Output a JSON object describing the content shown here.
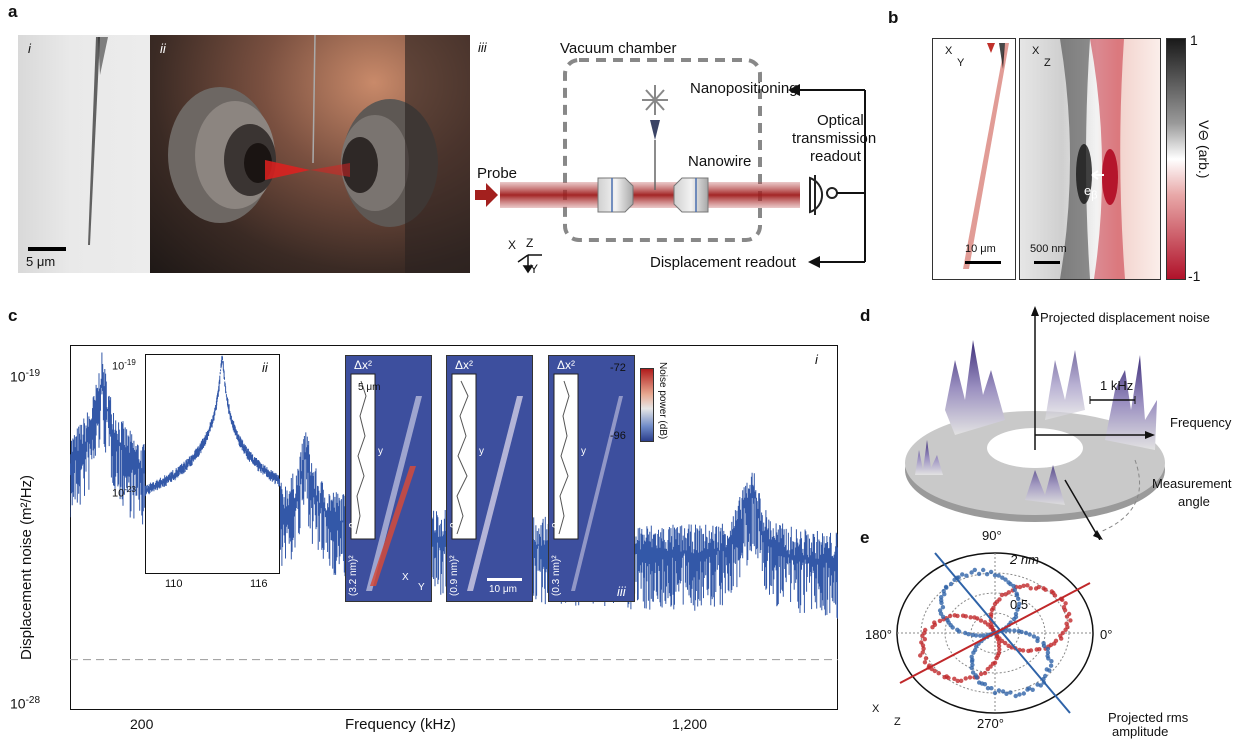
{
  "panels": {
    "a": "a",
    "b": "b",
    "c": "c",
    "d": "d",
    "e": "e"
  },
  "a": {
    "sub_i": "i",
    "sub_ii": "ii",
    "sub_iii": "iii",
    "scale_bar": "5 μm",
    "vacuum_chamber": "Vacuum chamber",
    "nanopositioning": "Nanopositioning",
    "optical_readout_1": "Optical",
    "optical_readout_2": "transmission",
    "optical_readout_3": "readout",
    "nanowire": "Nanowire",
    "probe": "Probe",
    "displacement_readout": "Displacement readout",
    "axis_x": "X",
    "axis_z": "Z",
    "axis_y": "Y"
  },
  "b": {
    "axis_x1": "X",
    "axis_y1": "Y",
    "axis_x2": "X",
    "axis_z2": "Z",
    "scale_left": "10 μm",
    "scale_right": "500 nm",
    "e_beta": "e",
    "e_beta_sub": "β",
    "colorbar_top": "1",
    "colorbar_bottom": "-1",
    "colorbar_label": "V⊖ (arb.)",
    "colors": {
      "pos": "#1a1a1a",
      "neg": "#b0122a",
      "mid": "#ffffff"
    }
  },
  "c": {
    "sub_i": "i",
    "sub_ii": "ii",
    "sub_iii": "iii",
    "xlabel": "Frequency (kHz)",
    "ylabel": "Displacement noise (m²/Hz)",
    "ytick_top": "10",
    "ytick_top_exp": "-19",
    "ytick_bottom": "10",
    "ytick_bottom_exp": "-28",
    "xtick_1": "200",
    "xtick_2": "1,200",
    "inset_ytick_top": "10",
    "inset_ytick_top_exp": "-19",
    "inset_ytick_bottom": "10",
    "inset_ytick_bottom_exp": "-23",
    "inset_xtick_1": "110",
    "inset_xtick_2": "116",
    "map_title": "Δx²",
    "map1_scale": "5 μm",
    "map1_y": "y",
    "map1_zero": "0",
    "map1_value": "(3.2 nm)²",
    "map2_y": "y",
    "map2_zero": "0",
    "map2_value": "(0.9 nm)²",
    "map2_scale": "10 μm",
    "map3_y": "y",
    "map3_zero": "0",
    "map3_value": "(0.3 nm)²",
    "map_axis_x": "X",
    "map_axis_y": "Y",
    "cbar_top": "-72",
    "cbar_bottom": "-96",
    "cbar_label": "Noise power (dB)",
    "line_color": "#3358a8"
  },
  "d": {
    "label_vertical": "Projected displacement noise",
    "label_khz": "1 kHz",
    "label_freq": "Frequency",
    "label_angle_1": "Measurement",
    "label_angle_2": "angle"
  },
  "e": {
    "deg_90": "90°",
    "deg_180": "180°",
    "deg_0": "0°",
    "deg_270": "270°",
    "r_2nm": "2 nm",
    "r_05": "0.5",
    "axis_x": "X",
    "axis_z": "Z",
    "proj_1": "Projected rms",
    "proj_2": "amplitude",
    "colors": {
      "red": "#c0282a",
      "blue": "#2f63a8"
    }
  },
  "chart_data": {
    "type": "line",
    "xlabel": "Frequency (kHz)",
    "ylabel": "Displacement noise (m²/Hz)",
    "yscale": "log",
    "ylim": [
      1e-28,
      1e-18
    ],
    "xlim": [
      60,
      1330
    ],
    "xticks": [
      200,
      1200
    ],
    "peaks": [
      {
        "x": 113,
        "y": 1e-19
      },
      {
        "x": 450,
        "y": 1e-21
      },
      {
        "x": 1175,
        "y": 3e-23
      },
      {
        "x": 1190,
        "y": 1e-22
      }
    ],
    "noise_floor": 3e-27
  }
}
